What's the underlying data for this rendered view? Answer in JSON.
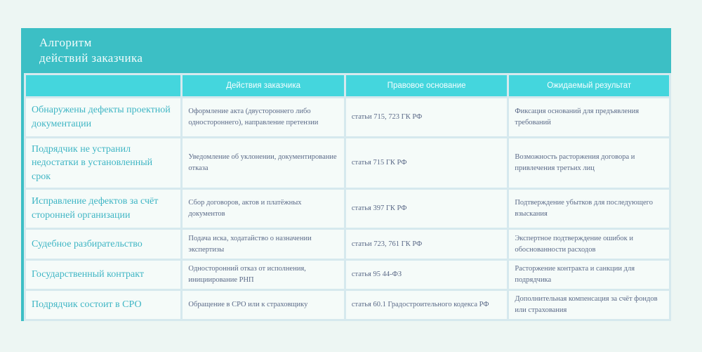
{
  "header": {
    "title_line1": "Алгоритм",
    "title_line2": "действий заказчика"
  },
  "columns": {
    "c0": "",
    "c1": "Действия заказчика",
    "c2": "Правовое основание",
    "c3": "Ожидаемый результат"
  },
  "rows": [
    {
      "situation": "Обнаружены дефекты проектной документации",
      "action": "Оформление акта (двустороннего либо одностороннего), направление претензии",
      "basis": "статьи 715, 723 ГК РФ",
      "result": "Фиксация оснований для предъявления требований"
    },
    {
      "situation": "Подрядчик не устранил недостатки в установленный срок",
      "action": "Уведомление об уклонении, документирование отказа",
      "basis": "статья 715 ГК РФ",
      "result": "Возможность расторжения договора и привлечения третьих лиц"
    },
    {
      "situation": "Исправление дефектов за счёт сторонней организации",
      "action": "Сбор договоров, актов и платёжных документов",
      "basis": "статья 397 ГК РФ",
      "result": "Подтверждение убытков для последующего взыскания"
    },
    {
      "situation": "Судебное разбирательство",
      "action": "Подача иска, ходатайство о назначении экспертизы",
      "basis": "статьи 723, 761 ГК РФ",
      "result": "Экспертное подтверждение ошибок и обоснованности расходов"
    },
    {
      "situation": "Государственный контракт",
      "action": "Односторонний отказ от исполнения, инициирование РНП",
      "basis": "статья 95 44-ФЗ",
      "result": "Расторжение контракта и санкции для подрядчика"
    },
    {
      "situation": "Подрядчик состоит в СРО",
      "action": "Обращение в СРО или к страховщику",
      "basis": "статья 60.1 Градостроительного кодекса РФ",
      "result": "Дополнительная компенсация за счёт фондов или страхования"
    }
  ],
  "colors": {
    "header_teal": "#3cbfc5",
    "column_header_teal": "#44d6dd",
    "grid_line": "#d6e9ee",
    "cell_background": "#f5fbf9",
    "page_background": "#edf6f3",
    "situation_text": "#3eb5c4",
    "body_text": "#5b6a88"
  }
}
